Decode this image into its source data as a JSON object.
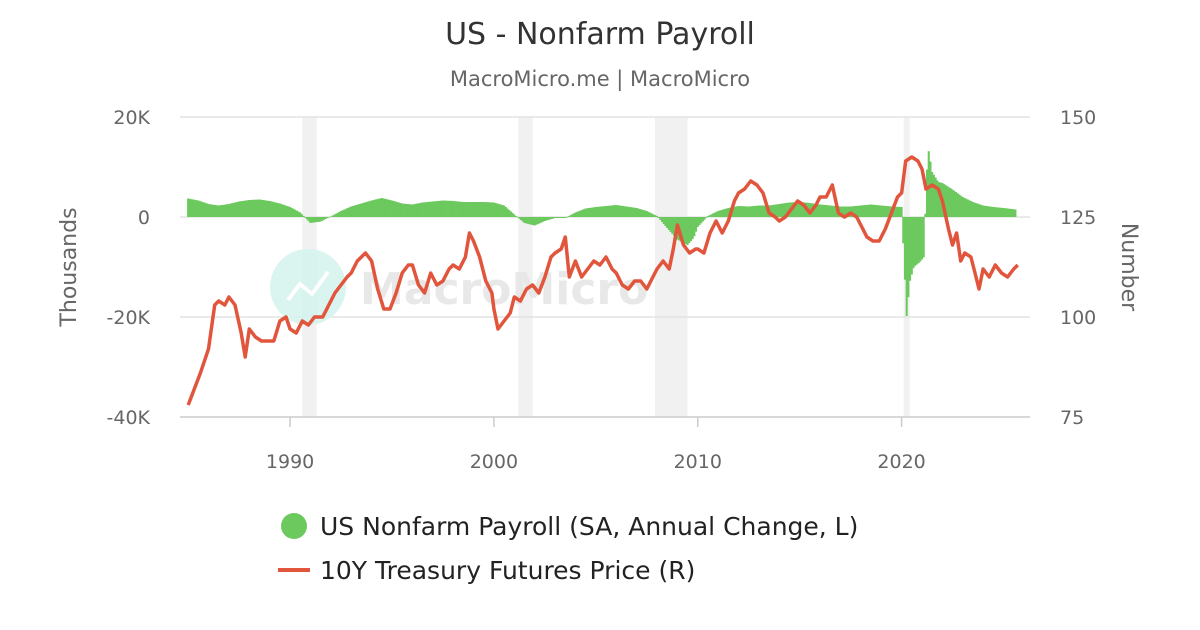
{
  "chart_data": {
    "type": "bar+line",
    "title": "US - Nonfarm Payroll",
    "subtitle": "MacroMicro.me | MacroMicro",
    "watermark": "MacroMicro",
    "x_ticks": [
      "1990",
      "2000",
      "2010",
      "2020"
    ],
    "x_range": [
      1984.6,
      2026.3
    ],
    "left_axis": {
      "title": "Thousands",
      "range": [
        -40000,
        20000
      ],
      "ticks": [
        "20K",
        "0",
        "-20K",
        "-40K"
      ],
      "tick_values": [
        20000,
        0,
        -20000,
        -40000
      ]
    },
    "right_axis": {
      "title": "Number",
      "range": [
        75,
        150
      ],
      "ticks": [
        "150",
        "125",
        "100",
        "75"
      ],
      "tick_values": [
        150,
        125,
        100,
        75
      ]
    },
    "recessions": [
      [
        1990.6,
        1991.3
      ],
      [
        2001.2,
        2001.9
      ],
      [
        2007.9,
        2009.5
      ],
      [
        2020.1,
        2020.4
      ]
    ],
    "series": [
      {
        "name": "US Nonfarm Payroll (SA, Annual Change, L)",
        "type": "bar",
        "axis": "left",
        "color": "#6cc95e",
        "points": [
          [
            1985.0,
            3700
          ],
          [
            1985.5,
            3300
          ],
          [
            1986.0,
            2600
          ],
          [
            1986.5,
            2300
          ],
          [
            1987.0,
            2600
          ],
          [
            1987.5,
            3100
          ],
          [
            1988.0,
            3400
          ],
          [
            1988.5,
            3500
          ],
          [
            1989.0,
            3200
          ],
          [
            1989.5,
            2700
          ],
          [
            1990.0,
            2000
          ],
          [
            1990.5,
            900
          ],
          [
            1991.0,
            -1200
          ],
          [
            1991.5,
            -900
          ],
          [
            1992.0,
            100
          ],
          [
            1992.5,
            1200
          ],
          [
            1993.0,
            2100
          ],
          [
            1993.5,
            2700
          ],
          [
            1994.0,
            3300
          ],
          [
            1994.5,
            3800
          ],
          [
            1995.0,
            3300
          ],
          [
            1995.5,
            2700
          ],
          [
            1996.0,
            2500
          ],
          [
            1996.5,
            2900
          ],
          [
            1997.0,
            3100
          ],
          [
            1997.5,
            3300
          ],
          [
            1998.0,
            3200
          ],
          [
            1998.5,
            3000
          ],
          [
            1999.0,
            3000
          ],
          [
            1999.5,
            3000
          ],
          [
            2000.0,
            2900
          ],
          [
            2000.5,
            2300
          ],
          [
            2001.0,
            500
          ],
          [
            2001.5,
            -1200
          ],
          [
            2002.0,
            -1700
          ],
          [
            2002.5,
            -800
          ],
          [
            2003.0,
            -200
          ],
          [
            2003.5,
            -200
          ],
          [
            2004.0,
            900
          ],
          [
            2004.5,
            1700
          ],
          [
            2005.0,
            2000
          ],
          [
            2005.5,
            2200
          ],
          [
            2006.0,
            2400
          ],
          [
            2006.5,
            2100
          ],
          [
            2007.0,
            1800
          ],
          [
            2007.5,
            1200
          ],
          [
            2008.0,
            200
          ],
          [
            2008.5,
            -2200
          ],
          [
            2009.0,
            -4500
          ],
          [
            2009.5,
            -5600
          ],
          [
            2009.8,
            -4200
          ],
          [
            2010.0,
            -2000
          ],
          [
            2010.5,
            200
          ],
          [
            2011.0,
            1200
          ],
          [
            2011.5,
            1800
          ],
          [
            2012.0,
            2200
          ],
          [
            2012.5,
            2100
          ],
          [
            2013.0,
            2300
          ],
          [
            2013.5,
            2300
          ],
          [
            2014.0,
            2600
          ],
          [
            2014.5,
            2900
          ],
          [
            2015.0,
            3000
          ],
          [
            2015.5,
            2800
          ],
          [
            2016.0,
            2500
          ],
          [
            2016.5,
            2300
          ],
          [
            2017.0,
            2100
          ],
          [
            2017.5,
            2100
          ],
          [
            2018.0,
            2300
          ],
          [
            2018.5,
            2500
          ],
          [
            2019.0,
            2300
          ],
          [
            2019.5,
            2100
          ],
          [
            2020.0,
            2000
          ],
          [
            2020.25,
            -19800
          ],
          [
            2020.4,
            -13000
          ],
          [
            2020.6,
            -10000
          ],
          [
            2020.9,
            -9000
          ],
          [
            2021.1,
            -8000
          ],
          [
            2021.2,
            5000
          ],
          [
            2021.3,
            14000
          ],
          [
            2021.5,
            9000
          ],
          [
            2021.8,
            7000
          ],
          [
            2022.0,
            6800
          ],
          [
            2022.5,
            5500
          ],
          [
            2023.0,
            4000
          ],
          [
            2023.5,
            3000
          ],
          [
            2024.0,
            2300
          ],
          [
            2024.5,
            2000
          ],
          [
            2025.0,
            1800
          ],
          [
            2025.6,
            1500
          ]
        ]
      },
      {
        "name": "10Y Treasury Futures Price (R)",
        "type": "line",
        "axis": "right",
        "color": "#e2553d",
        "points": [
          [
            1985.0,
            78
          ],
          [
            1985.3,
            82
          ],
          [
            1985.6,
            86
          ],
          [
            1986.0,
            92
          ],
          [
            1986.3,
            103
          ],
          [
            1986.5,
            104
          ],
          [
            1986.8,
            103
          ],
          [
            1987.0,
            105
          ],
          [
            1987.3,
            103
          ],
          [
            1987.6,
            96
          ],
          [
            1987.8,
            90
          ],
          [
            1988.0,
            97
          ],
          [
            1988.3,
            95
          ],
          [
            1988.6,
            94
          ],
          [
            1988.9,
            94
          ],
          [
            1989.2,
            94
          ],
          [
            1989.5,
            99
          ],
          [
            1989.8,
            100
          ],
          [
            1990.0,
            97
          ],
          [
            1990.3,
            96
          ],
          [
            1990.6,
            99
          ],
          [
            1990.9,
            98
          ],
          [
            1991.2,
            100
          ],
          [
            1991.6,
            100
          ],
          [
            1991.9,
            103
          ],
          [
            1992.2,
            106
          ],
          [
            1992.5,
            108
          ],
          [
            1992.8,
            110
          ],
          [
            1993.0,
            111
          ],
          [
            1993.3,
            114
          ],
          [
            1993.7,
            116
          ],
          [
            1994.0,
            114
          ],
          [
            1994.3,
            107
          ],
          [
            1994.6,
            102
          ],
          [
            1994.9,
            102
          ],
          [
            1995.2,
            106
          ],
          [
            1995.5,
            111
          ],
          [
            1995.8,
            113
          ],
          [
            1996.0,
            113
          ],
          [
            1996.3,
            108
          ],
          [
            1996.6,
            106
          ],
          [
            1996.9,
            111
          ],
          [
            1997.2,
            108
          ],
          [
            1997.5,
            109
          ],
          [
            1997.8,
            112
          ],
          [
            1998.0,
            113
          ],
          [
            1998.3,
            112
          ],
          [
            1998.6,
            115
          ],
          [
            1998.8,
            121
          ],
          [
            1999.0,
            119
          ],
          [
            1999.3,
            115
          ],
          [
            1999.6,
            109
          ],
          [
            1999.9,
            106
          ],
          [
            2000.0,
            102
          ],
          [
            2000.2,
            97
          ],
          [
            2000.5,
            99
          ],
          [
            2000.8,
            101
          ],
          [
            2001.0,
            105
          ],
          [
            2001.3,
            104
          ],
          [
            2001.6,
            107
          ],
          [
            2001.9,
            108
          ],
          [
            2002.2,
            106
          ],
          [
            2002.5,
            110
          ],
          [
            2002.8,
            115
          ],
          [
            2003.0,
            116
          ],
          [
            2003.3,
            117
          ],
          [
            2003.5,
            120
          ],
          [
            2003.7,
            110
          ],
          [
            2004.0,
            114
          ],
          [
            2004.3,
            110
          ],
          [
            2004.6,
            112
          ],
          [
            2004.9,
            114
          ],
          [
            2005.2,
            113
          ],
          [
            2005.5,
            115
          ],
          [
            2005.8,
            112
          ],
          [
            2006.0,
            111
          ],
          [
            2006.3,
            108
          ],
          [
            2006.6,
            107
          ],
          [
            2006.9,
            109
          ],
          [
            2007.2,
            109
          ],
          [
            2007.5,
            107
          ],
          [
            2007.8,
            110
          ],
          [
            2008.0,
            112
          ],
          [
            2008.3,
            114
          ],
          [
            2008.6,
            112
          ],
          [
            2008.8,
            117
          ],
          [
            2009.0,
            123
          ],
          [
            2009.3,
            118
          ],
          [
            2009.6,
            116
          ],
          [
            2009.9,
            117
          ],
          [
            2010.0,
            117
          ],
          [
            2010.3,
            116
          ],
          [
            2010.6,
            121
          ],
          [
            2010.9,
            124
          ],
          [
            2011.2,
            121
          ],
          [
            2011.5,
            124
          ],
          [
            2011.8,
            129
          ],
          [
            2012.0,
            131
          ],
          [
            2012.3,
            132
          ],
          [
            2012.6,
            134
          ],
          [
            2012.9,
            133
          ],
          [
            2013.2,
            131
          ],
          [
            2013.5,
            126
          ],
          [
            2013.8,
            125
          ],
          [
            2014.0,
            124
          ],
          [
            2014.3,
            125
          ],
          [
            2014.6,
            127
          ],
          [
            2014.9,
            129
          ],
          [
            2015.2,
            128
          ],
          [
            2015.5,
            126
          ],
          [
            2015.8,
            128
          ],
          [
            2016.0,
            130
          ],
          [
            2016.3,
            130
          ],
          [
            2016.6,
            133
          ],
          [
            2016.9,
            126
          ],
          [
            2017.2,
            125
          ],
          [
            2017.5,
            126
          ],
          [
            2017.8,
            125
          ],
          [
            2018.0,
            123
          ],
          [
            2018.3,
            120
          ],
          [
            2018.6,
            119
          ],
          [
            2018.9,
            119
          ],
          [
            2019.2,
            122
          ],
          [
            2019.5,
            126
          ],
          [
            2019.8,
            130
          ],
          [
            2020.0,
            131
          ],
          [
            2020.2,
            139
          ],
          [
            2020.5,
            140
          ],
          [
            2020.8,
            139
          ],
          [
            2021.0,
            137
          ],
          [
            2021.2,
            132
          ],
          [
            2021.5,
            133
          ],
          [
            2021.8,
            132
          ],
          [
            2022.0,
            129
          ],
          [
            2022.3,
            122
          ],
          [
            2022.5,
            118
          ],
          [
            2022.7,
            121
          ],
          [
            2022.9,
            114
          ],
          [
            2023.1,
            116
          ],
          [
            2023.4,
            115
          ],
          [
            2023.6,
            111
          ],
          [
            2023.8,
            107
          ],
          [
            2024.0,
            112
          ],
          [
            2024.3,
            110
          ],
          [
            2024.6,
            113
          ],
          [
            2024.9,
            111
          ],
          [
            2025.2,
            110
          ],
          [
            2025.5,
            112
          ],
          [
            2025.7,
            113
          ]
        ]
      }
    ],
    "legend_position": "bottom",
    "grid": "horizontal"
  }
}
